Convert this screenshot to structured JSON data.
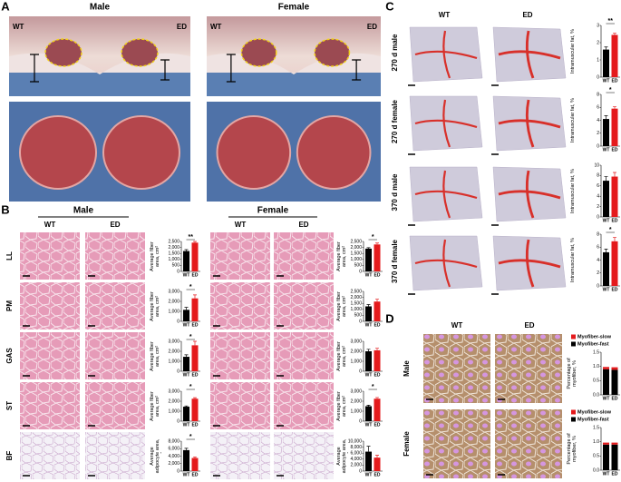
{
  "figure": {
    "panel_a": {
      "letter": "A",
      "groups": [
        "Male",
        "Female"
      ],
      "image_labels": [
        "WT",
        "ED"
      ]
    },
    "panel_b": {
      "letter": "B",
      "groups": [
        "Male",
        "Female"
      ],
      "columns": [
        "WT",
        "ED"
      ],
      "rows": [
        "LL",
        "PM",
        "GAS",
        "ST",
        "BF"
      ]
    },
    "panel_c": {
      "letter": "C",
      "columns": [
        "WT",
        "ED"
      ],
      "rows": [
        "270 d male",
        "270 d female",
        "370 d male",
        "370 d female"
      ]
    },
    "panel_d": {
      "letter": "D",
      "columns": [
        "WT",
        "ED"
      ],
      "rows": [
        "Male",
        "Female"
      ]
    }
  },
  "chart_data": [
    {
      "type": "bar",
      "ylabel": "Average fiber area, cm²",
      "categories": [
        "WT",
        "ED"
      ],
      "values": [
        1700,
        2400
      ],
      "errors": [
        120,
        100
      ],
      "colors": [
        "#000000",
        "#e41a1c"
      ],
      "annotation": "**",
      "ylim": [
        0,
        2500
      ],
      "yticks": [
        0,
        500,
        {
          "value": 1000,
          "label": "1,000"
        },
        {
          "value": 1500,
          "label": "1,500"
        },
        {
          "value": 2000,
          "label": "2,000"
        },
        {
          "value": 2500,
          "label": "2,500"
        }
      ]
    },
    {
      "type": "bar",
      "ylabel": "Average fiber area, cm²",
      "categories": [
        "WT",
        "ED"
      ],
      "values": [
        1150,
        2300
      ],
      "errors": [
        250,
        350
      ],
      "colors": [
        "#000000",
        "#e41a1c"
      ],
      "annotation": "*",
      "ylim": [
        0,
        3000
      ],
      "yticks": [
        0,
        {
          "value": 1000,
          "label": "1,000"
        },
        {
          "value": 2000,
          "label": "2,000"
        },
        {
          "value": 3000,
          "label": "3,000"
        }
      ]
    },
    {
      "type": "bar",
      "ylabel": "Average fiber area, cm²",
      "categories": [
        "WT",
        "ED"
      ],
      "values": [
        1450,
        2600
      ],
      "errors": [
        200,
        400
      ],
      "colors": [
        "#000000",
        "#e41a1c"
      ],
      "annotation": "*",
      "ylim": [
        0,
        3000
      ],
      "yticks": [
        0,
        {
          "value": 1000,
          "label": "1,000"
        },
        {
          "value": 2000,
          "label": "2,000"
        },
        {
          "value": 3000,
          "label": "3,000"
        }
      ]
    },
    {
      "type": "bar",
      "ylabel": "Average fiber area, cm²",
      "categories": [
        "WT",
        "ED"
      ],
      "values": [
        1450,
        2250
      ],
      "errors": [
        80,
        100
      ],
      "colors": [
        "#000000",
        "#e41a1c"
      ],
      "annotation": "*",
      "ylim": [
        0,
        3000
      ],
      "yticks": [
        0,
        {
          "value": 1000,
          "label": "1,000"
        },
        {
          "value": 2000,
          "label": "2,000"
        },
        {
          "value": 3000,
          "label": "3,000"
        }
      ]
    },
    {
      "type": "bar",
      "ylabel": "Average adipocyte area, cm²",
      "categories": [
        "WT",
        "ED"
      ],
      "values": [
        5600,
        3500
      ],
      "errors": [
        500,
        300
      ],
      "colors": [
        "#000000",
        "#e41a1c"
      ],
      "annotation": "*",
      "ylim": [
        0,
        8000
      ],
      "yticks": [
        0,
        {
          "value": 2000,
          "label": "2,000"
        },
        {
          "value": 4000,
          "label": "4,000"
        },
        {
          "value": 6000,
          "label": "6,000"
        },
        {
          "value": 8000,
          "label": "8,000"
        }
      ]
    },
    {
      "type": "bar",
      "ylabel": "Average fiber area, cm²",
      "categories": [
        "WT",
        "ED"
      ],
      "values": [
        1900,
        2250
      ],
      "errors": [
        80,
        120
      ],
      "colors": [
        "#000000",
        "#e41a1c"
      ],
      "annotation": "*",
      "ylim": [
        0,
        2500
      ],
      "yticks": [
        0,
        500,
        {
          "value": 1000,
          "label": "1,000"
        },
        {
          "value": 1500,
          "label": "1,500"
        },
        {
          "value": 2000,
          "label": "2,000"
        },
        {
          "value": 2500,
          "label": "2,500"
        }
      ]
    },
    {
      "type": "bar",
      "ylabel": "Average fiber area, cm²",
      "categories": [
        "WT",
        "ED"
      ],
      "values": [
        1250,
        1650
      ],
      "errors": [
        150,
        200
      ],
      "colors": [
        "#000000",
        "#e41a1c"
      ],
      "ylim": [
        0,
        2500
      ],
      "yticks": [
        0,
        500,
        {
          "value": 1000,
          "label": "1,000"
        },
        {
          "value": 1500,
          "label": "1,500"
        },
        {
          "value": 2000,
          "label": "2,000"
        },
        {
          "value": 2500,
          "label": "2,500"
        }
      ]
    },
    {
      "type": "bar",
      "ylabel": "Average fiber area, cm²",
      "categories": [
        "WT",
        "ED"
      ],
      "values": [
        2000,
        2100
      ],
      "errors": [
        200,
        200
      ],
      "colors": [
        "#000000",
        "#e41a1c"
      ],
      "ylim": [
        0,
        3000
      ],
      "yticks": [
        0,
        {
          "value": 1000,
          "label": "1,000"
        },
        {
          "value": 2000,
          "label": "2,000"
        },
        {
          "value": 3000,
          "label": "3,000"
        }
      ]
    },
    {
      "type": "bar",
      "ylabel": "Average fiber area, cm²",
      "categories": [
        "WT",
        "ED"
      ],
      "values": [
        1500,
        2250
      ],
      "errors": [
        100,
        120
      ],
      "colors": [
        "#000000",
        "#e41a1c"
      ],
      "annotation": "*",
      "ylim": [
        0,
        3000
      ],
      "yticks": [
        0,
        {
          "value": 1000,
          "label": "1,000"
        },
        {
          "value": 2000,
          "label": "2,000"
        },
        {
          "value": 3000,
          "label": "3,000"
        }
      ]
    },
    {
      "type": "bar",
      "ylabel": "Average adipocyte area, cm²",
      "categories": [
        "WT",
        "ED"
      ],
      "values": [
        6500,
        4500
      ],
      "errors": [
        1800,
        800
      ],
      "colors": [
        "#000000",
        "#e41a1c"
      ],
      "ylim": [
        0,
        10000
      ],
      "yticks": [
        0,
        {
          "value": 2000,
          "label": "2,000"
        },
        {
          "value": 4000,
          "label": "4,000"
        },
        {
          "value": 6000,
          "label": "6,000"
        },
        {
          "value": 8000,
          "label": "8,000"
        },
        {
          "value": 10000,
          "label": "10,000"
        }
      ]
    },
    {
      "type": "bar",
      "ylabel": "Intramuscular fat, %",
      "categories": [
        "WT",
        "ED"
      ],
      "values": [
        1.6,
        2.45
      ],
      "errors": [
        0.15,
        0.1
      ],
      "colors": [
        "#000000",
        "#e41a1c"
      ],
      "annotation": "**",
      "ylim": [
        0,
        3
      ],
      "yticks": [
        0,
        1,
        2,
        3
      ]
    },
    {
      "type": "bar",
      "ylabel": "Intramuscular fat, %",
      "categories": [
        "WT",
        "ED"
      ],
      "values": [
        4.2,
        5.8
      ],
      "errors": [
        0.5,
        0.3
      ],
      "colors": [
        "#000000",
        "#e41a1c"
      ],
      "annotation": "*",
      "ylim": [
        0,
        8
      ],
      "yticks": [
        0,
        2,
        4,
        6,
        8
      ]
    },
    {
      "type": "bar",
      "ylabel": "Intramuscular fat, %",
      "categories": [
        "WT",
        "ED"
      ],
      "values": [
        7,
        7.8
      ],
      "errors": [
        0.8,
        0.8
      ],
      "colors": [
        "#000000",
        "#e41a1c"
      ],
      "ylim": [
        0,
        10
      ],
      "yticks": [
        0,
        2,
        4,
        6,
        8,
        10
      ]
    },
    {
      "type": "bar",
      "ylabel": "Intramuscular fat, %",
      "categories": [
        "WT",
        "ED"
      ],
      "values": [
        5.2,
        6.9
      ],
      "errors": [
        0.5,
        0.6
      ],
      "colors": [
        "#000000",
        "#e41a1c"
      ],
      "annotation": "*",
      "ylim": [
        0,
        8
      ],
      "yticks": [
        0,
        2,
        4,
        6,
        8
      ]
    },
    {
      "type": "stacked_bar",
      "ylabel": "Percentage of myofiber, %",
      "categories": [
        "WT",
        "ED"
      ],
      "series": [
        {
          "name": "Myofiber-slow",
          "color": "#e41a1c",
          "values": [
            0.08,
            0.09
          ]
        },
        {
          "name": "Myofiber-fast",
          "color": "#000000",
          "values": [
            0.9,
            0.88
          ]
        }
      ],
      "ylim": [
        0,
        1.5
      ],
      "yticks": [
        {
          "value": 0,
          "label": "0.0"
        },
        0.5,
        {
          "value": 1,
          "label": "1.0"
        },
        1.5
      ]
    },
    {
      "type": "stacked_bar",
      "ylabel": "Percentage of myofiber, %",
      "categories": [
        "WT",
        "ED"
      ],
      "series": [
        {
          "name": "Myofiber-slow",
          "color": "#e41a1c",
          "values": [
            0.07,
            0.07
          ]
        },
        {
          "name": "Myofiber-fast",
          "color": "#000000",
          "values": [
            0.9,
            0.9
          ]
        }
      ],
      "ylim": [
        0,
        1.5
      ],
      "yticks": [
        {
          "value": 0,
          "label": "0.0"
        },
        0.5,
        {
          "value": 1,
          "label": "1.0"
        },
        1.5
      ]
    }
  ]
}
